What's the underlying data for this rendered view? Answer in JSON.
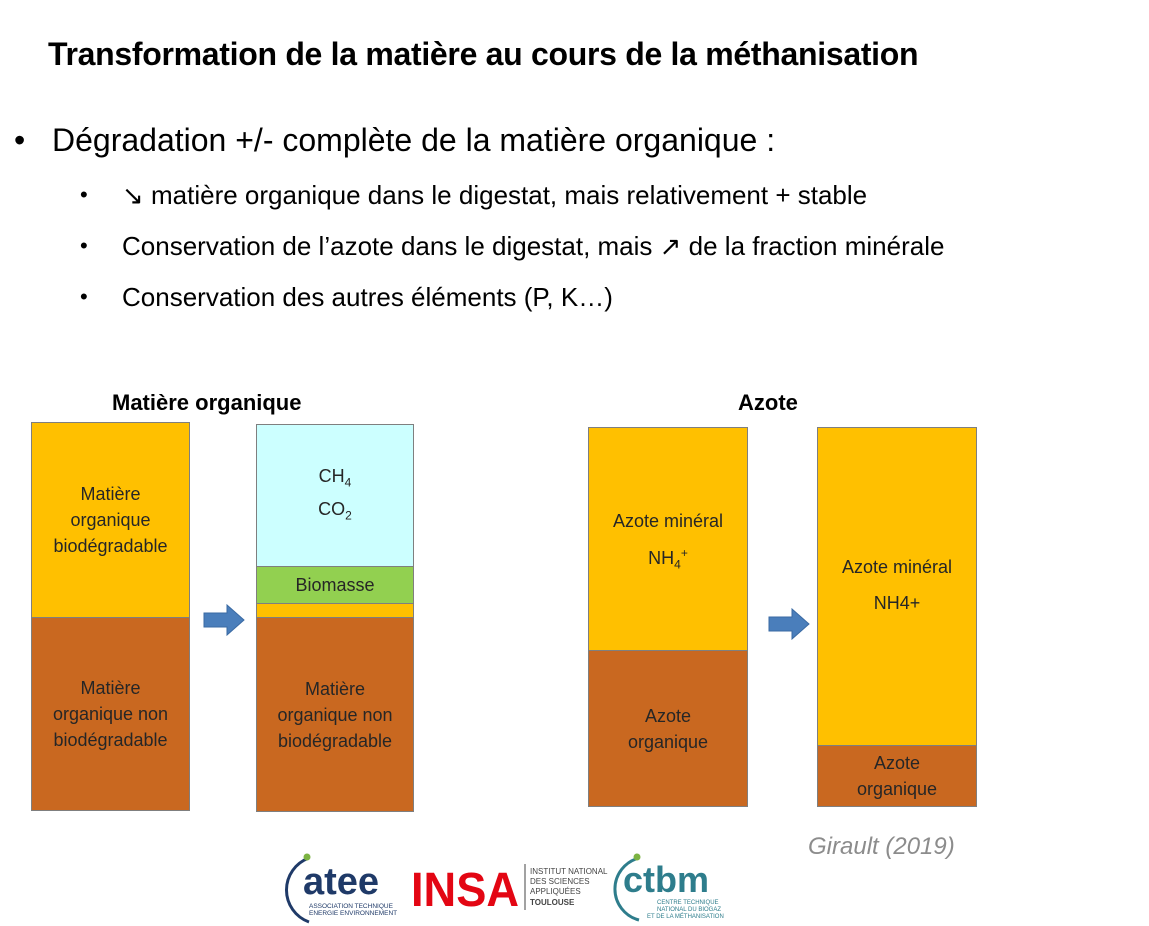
{
  "slide": {
    "title": "Transformation de la matière au cours de la méthanisation",
    "main_bullet": "Dégradation +/- complète de la matière organique :",
    "sub_bullets": [
      "↘ matière organique dans le digestat, mais relativement + stable",
      "Conservation de l’azote dans le digestat, mais ↗ de la fraction minérale",
      "Conservation des autres éléments (P, K…)"
    ],
    "bullet_char": "•",
    "citation": "Girault (2019)"
  },
  "diagram_mo": {
    "title": "Matière organique",
    "before": {
      "biodegradable": [
        "Matière",
        "organique",
        "biodégradable"
      ],
      "non_biodegradable": [
        "Matière",
        "organique non",
        "biodégradable"
      ]
    },
    "after": {
      "gas_ch4": "CH",
      "gas_ch4_sub": "4",
      "gas_co2": "CO",
      "gas_co2_sub": "2",
      "biomasse": "Biomasse",
      "non_biodegradable": [
        "Matière",
        "organique non",
        "biodégradable"
      ]
    }
  },
  "diagram_azote": {
    "title": "Azote",
    "before": {
      "mineral": "Azote minéral",
      "nh4_base": "NH",
      "nh4_sub": "4",
      "nh4_sup": "+",
      "organique": [
        "Azote",
        "organique"
      ]
    },
    "after": {
      "mineral": "Azote minéral",
      "nh4": "NH4+",
      "organique": [
        "Azote",
        "organique"
      ]
    }
  },
  "logos": {
    "atee_word": "atee",
    "atee_caption_1": "ASSOCIATION TECHNIQUE",
    "atee_caption_2": "ENERGIE ENVIRONNEMENT",
    "insa_word": "INSA",
    "insa_caption": [
      "INSTITUT NATIONAL",
      "DES SCIENCES",
      "APPLIQUÉES",
      "TOULOUSE"
    ],
    "ctbm_word": "ctbm",
    "ctbm_caption": [
      "CENTRE TECHNIQUE",
      "NATIONAL DU BIOGAZ",
      "ET DE LA MÉTHANISATION"
    ]
  },
  "colors": {
    "yellow": "#ffc000",
    "brown": "#c96820",
    "cyan": "#ccffff",
    "green": "#92d050",
    "arrow": "#4a7ebb",
    "atee_blue": "#1f3a68",
    "insa_red": "#e30613",
    "ctbm_teal": "#2e7d8c"
  }
}
